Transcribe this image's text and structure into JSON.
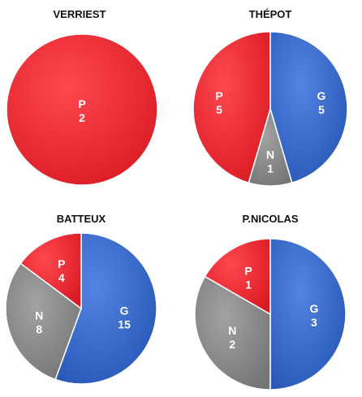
{
  "chart_data": [
    {
      "type": "pie",
      "title": "VERRIEST",
      "slices": [
        {
          "label": "P",
          "value": 2,
          "color": "#f2333c"
        }
      ]
    },
    {
      "type": "pie",
      "title": "THÉPOT",
      "slices": [
        {
          "label": "G",
          "value": 5,
          "color": "#3f6fcf"
        },
        {
          "label": "N",
          "value": 1,
          "color": "#8e8e8e"
        },
        {
          "label": "P",
          "value": 5,
          "color": "#f2333c"
        }
      ]
    },
    {
      "type": "pie",
      "title": "BATTEUX",
      "slices": [
        {
          "label": "G",
          "value": 15,
          "color": "#3f6fcf"
        },
        {
          "label": "N",
          "value": 8,
          "color": "#8e8e8e"
        },
        {
          "label": "P",
          "value": 4,
          "color": "#f2333c"
        }
      ]
    },
    {
      "type": "pie",
      "title": "P.NICOLAS",
      "slices": [
        {
          "label": "G",
          "value": 3,
          "color": "#3f6fcf"
        },
        {
          "label": "N",
          "value": 2,
          "color": "#8e8e8e"
        },
        {
          "label": "P",
          "value": 1,
          "color": "#f2333c"
        }
      ]
    }
  ]
}
